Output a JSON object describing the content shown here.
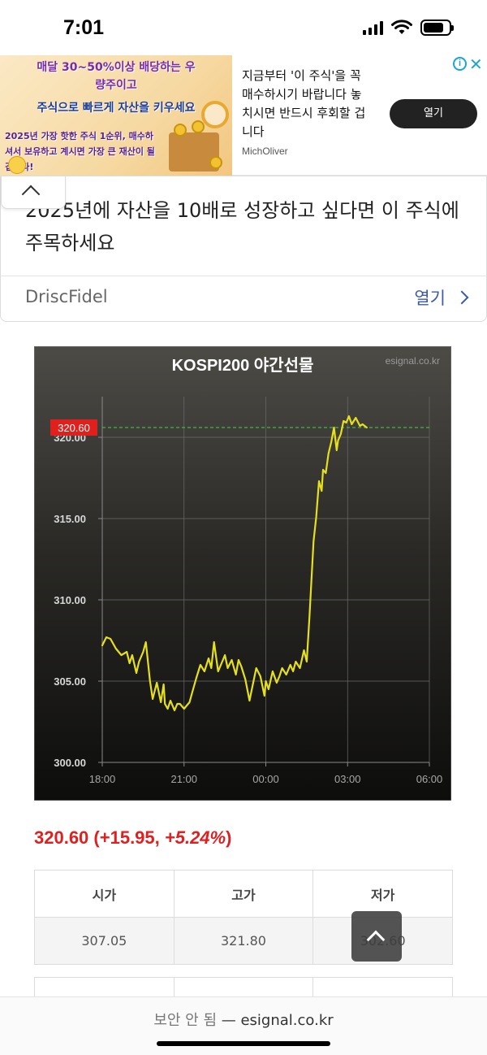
{
  "status_bar": {
    "time": "7:01"
  },
  "ad_top": {
    "banner_line1": "매달 30~50%이상 배당하는 우",
    "banner_line2": "량주이고",
    "banner_line3": "주식으로 빠르게 자산을 키우세요",
    "banner_sub": "2025년 가장 핫한 주식 1순위, 매수하셔서 보유하고 계시면 가장 큰 재산이 될 겁니다!",
    "text": "지금부터 '이 주식'을 꼭 매수하시기 바랍니다 놓치시면 반드시 후회할 겁니다",
    "brand": "MichOliver",
    "button": "열기",
    "info_glyph": "i",
    "close_glyph": "✕"
  },
  "ad_card": {
    "headline": "2025년에 자산을 10배로 성장하고 싶다면 이 주식에 주목하세요",
    "brand": "DriscFidel",
    "open": "열기"
  },
  "chart_data": {
    "type": "line",
    "title": "KOSPI200 야간선물",
    "watermark": "esignal.co.kr",
    "x_ticks": [
      "18:00",
      "21:00",
      "00:00",
      "03:00",
      "06:00"
    ],
    "y_ticks": [
      "300.00",
      "305.00",
      "310.00",
      "315.00",
      "320.00"
    ],
    "ylim": [
      300,
      322.5
    ],
    "x_range_hours": [
      0,
      12
    ],
    "current_value": 320.6,
    "current_label": "320.60",
    "series": [
      {
        "x": [
          0,
          0.15,
          0.3,
          0.5,
          0.7,
          0.9,
          1.0,
          1.1,
          1.25,
          1.35,
          1.5,
          1.6,
          1.75,
          1.85,
          2.0,
          2.15,
          2.25,
          2.3,
          2.4,
          2.5,
          2.65,
          2.75,
          2.85,
          3.0,
          3.1,
          3.2,
          3.3,
          3.45,
          3.6,
          3.75,
          3.9,
          4.0,
          4.1,
          4.25,
          4.4,
          4.5,
          4.6,
          4.75,
          4.9,
          5.0,
          5.1,
          5.25,
          5.4,
          5.5,
          5.65,
          5.8,
          5.95,
          6.0,
          6.1,
          6.25,
          6.4,
          6.5,
          6.6,
          6.75,
          6.9,
          7.0,
          7.1,
          7.25,
          7.4,
          7.5,
          7.6,
          7.75,
          7.85,
          7.95,
          8.05,
          8.1,
          8.2,
          8.3,
          8.4,
          8.5,
          8.6,
          8.65,
          8.75,
          8.85,
          8.95,
          9.05,
          9.15,
          9.3,
          9.45,
          9.55,
          9.7
        ],
        "values": [
          307.2,
          307.7,
          307.6,
          307.0,
          306.6,
          306.8,
          306.1,
          306.6,
          305.5,
          306.2,
          306.8,
          307.4,
          305.0,
          303.9,
          304.9,
          303.7,
          304.8,
          303.6,
          303.3,
          303.8,
          303.2,
          303.6,
          303.6,
          303.3,
          303.5,
          303.7,
          304.3,
          305.2,
          306.0,
          305.6,
          306.4,
          305.8,
          307.4,
          305.6,
          306.2,
          306.6,
          305.8,
          306.3,
          305.4,
          306.3,
          305.9,
          305.1,
          303.8,
          304.6,
          305.8,
          305.3,
          304.1,
          305.0,
          304.5,
          305.6,
          304.9,
          305.3,
          305.8,
          305.4,
          306.0,
          305.6,
          306.2,
          305.8,
          306.9,
          306.2,
          308.9,
          313.6,
          315.1,
          317.3,
          316.7,
          318.0,
          317.8,
          319.0,
          319.7,
          320.6,
          319.2,
          319.8,
          320.2,
          321.0,
          320.9,
          321.3,
          320.8,
          321.2,
          320.7,
          320.8,
          320.6
        ],
        "color": "#e5e01c"
      }
    ],
    "reference_line": {
      "value": 320.6,
      "style": "dashed",
      "color": "#3fd63f"
    },
    "grid": true
  },
  "quote": {
    "price": "320.60",
    "change": "(+15.95, ",
    "change_pct": "+5.24%",
    "close_paren": ")"
  },
  "ohl_table": {
    "headers": [
      "시가",
      "고가",
      "저가"
    ],
    "values": [
      "307.05",
      "321.80",
      "302.60"
    ]
  },
  "url_bar": {
    "insecure": "보안 안 됨",
    "separator": " — ",
    "domain": "esignal.co.kr"
  }
}
